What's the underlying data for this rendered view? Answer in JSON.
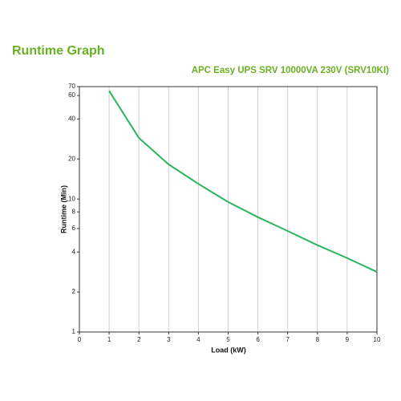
{
  "chart_data": {
    "type": "line",
    "title": "Runtime Graph",
    "subtitle": "APC Easy UPS SRV 10000VA 230V (SRV10KI)",
    "x_label": "Load (kW)",
    "y_label": "Runtime (Min)",
    "x": [
      1,
      2,
      3,
      4,
      5,
      6,
      7,
      8,
      9,
      10
    ],
    "series": [
      {
        "name": "Runtime",
        "color": "#2eb35f",
        "values": [
          65,
          28.8,
          18.2,
          13,
          9.5,
          7.3,
          5.75,
          4.5,
          3.6,
          2.83
        ]
      }
    ],
    "xlim": [
      0,
      10
    ],
    "xticks": [
      0,
      1,
      2,
      3,
      4,
      5,
      6,
      7,
      8,
      9,
      10
    ],
    "ylim": [
      1,
      70
    ],
    "yticks": [
      1,
      2,
      4,
      6,
      8,
      10,
      20,
      40,
      60,
      70
    ],
    "ylog": true,
    "grid": "x",
    "title_color": "#6ab023"
  }
}
